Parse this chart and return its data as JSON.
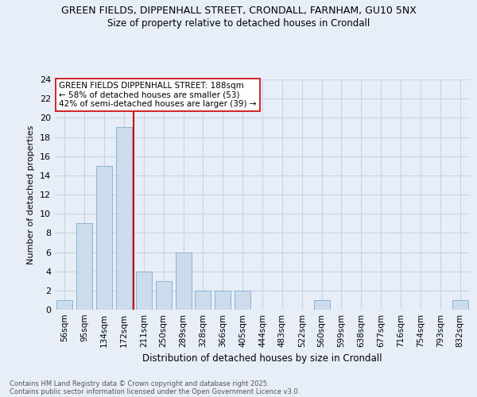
{
  "title_line1": "GREEN FIELDS, DIPPENHALL STREET, CRONDALL, FARNHAM, GU10 5NX",
  "title_line2": "Size of property relative to detached houses in Crondall",
  "xlabel": "Distribution of detached houses by size in Crondall",
  "ylabel": "Number of detached properties",
  "categories": [
    "56sqm",
    "95sqm",
    "134sqm",
    "172sqm",
    "211sqm",
    "250sqm",
    "289sqm",
    "328sqm",
    "366sqm",
    "405sqm",
    "444sqm",
    "483sqm",
    "522sqm",
    "560sqm",
    "599sqm",
    "638sqm",
    "677sqm",
    "716sqm",
    "754sqm",
    "793sqm",
    "832sqm"
  ],
  "values": [
    1,
    9,
    15,
    19,
    4,
    3,
    6,
    2,
    2,
    2,
    0,
    0,
    0,
    1,
    0,
    0,
    0,
    0,
    0,
    0,
    1
  ],
  "bar_color": "#ccdcec",
  "bar_edge_color": "#8ab4d4",
  "grid_color": "#c8d4e4",
  "background_color": "#e8eef8",
  "vline_color": "#cc0000",
  "annotation_text": "GREEN FIELDS DIPPENHALL STREET: 188sqm\n← 58% of detached houses are smaller (53)\n42% of semi-detached houses are larger (39) →",
  "annotation_box_color": "#ffffff",
  "annotation_box_edge": "#cc0000",
  "footer_line1": "Contains HM Land Registry data © Crown copyright and database right 2025.",
  "footer_line2": "Contains public sector information licensed under the Open Government Licence v3.0.",
  "ylim": [
    0,
    24
  ],
  "yticks": [
    0,
    2,
    4,
    6,
    8,
    10,
    12,
    14,
    16,
    18,
    20,
    22,
    24
  ],
  "vline_pos": 3.5
}
